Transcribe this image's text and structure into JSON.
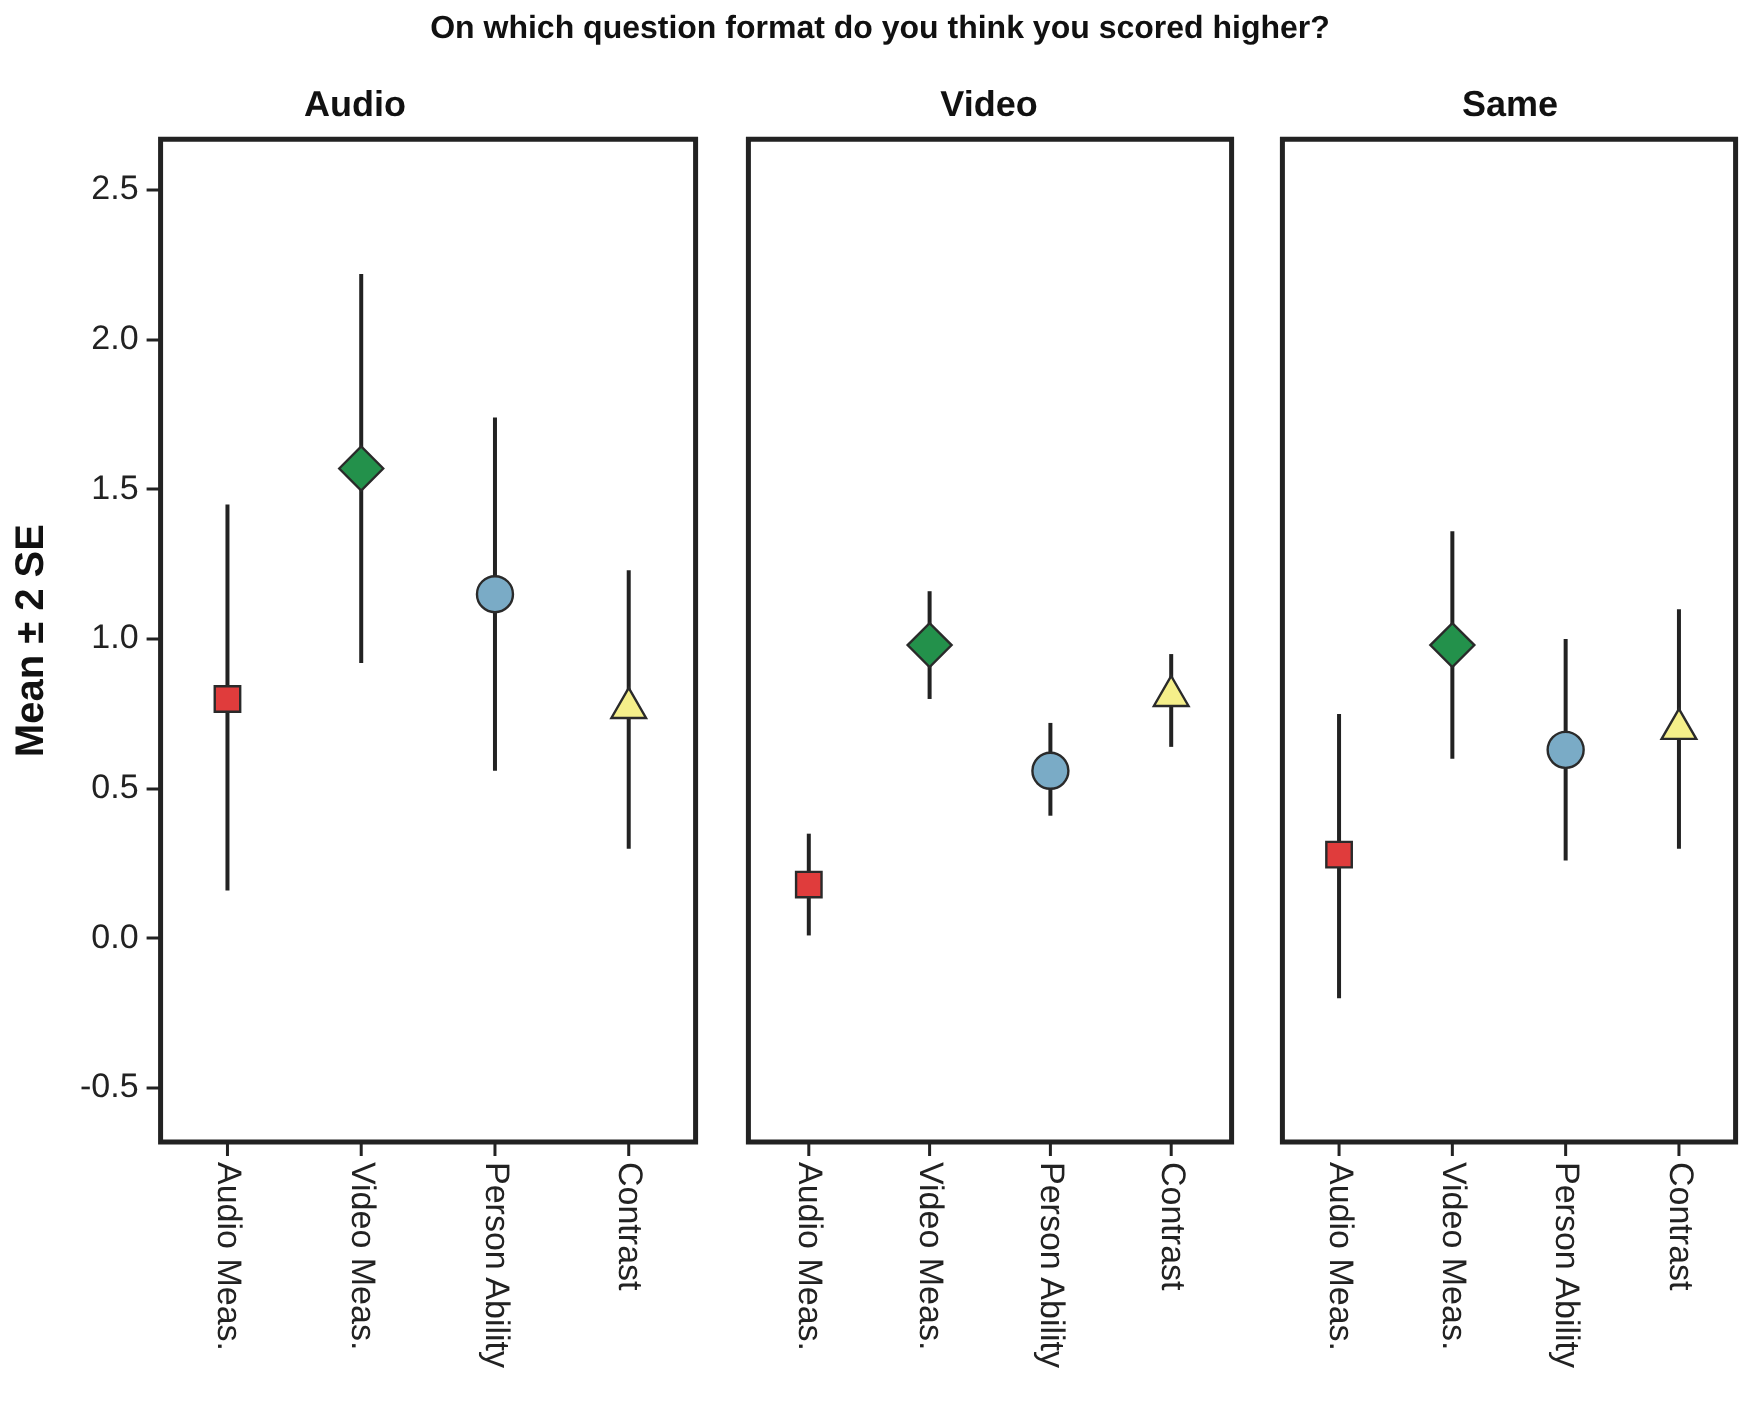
{
  "chart_data": [
    {
      "type": "scatter",
      "title": "On which question format do you think you scored higher?",
      "subtitle": "Audio",
      "ylabel": "Mean ± 2 SE",
      "categories": [
        "Audio Meas.",
        "Video Meas.",
        "Person Ability",
        "Contrast"
      ],
      "ylim": [
        -0.68,
        2.67
      ],
      "yticks": [
        {
          "value": -0.5,
          "label": "-0.5"
        },
        {
          "value": 0,
          "label": "0.0"
        },
        {
          "value": 0.5,
          "label": "0.5"
        },
        {
          "value": 1,
          "label": "1.0"
        },
        {
          "value": 1.5,
          "label": "1.5"
        },
        {
          "value": 2,
          "label": "2.0"
        },
        {
          "value": 2.5,
          "label": "2.5"
        }
      ],
      "grid": false,
      "series": [
        {
          "color": "#e03c3c",
          "marker": "square",
          "x": [
            "Audio Meas."
          ],
          "values": [
            0.8
          ],
          "errors": [
            [
              0.16,
              1.45
            ]
          ]
        },
        {
          "color": "#23914b",
          "marker": "diamond",
          "x": [
            "Video Meas."
          ],
          "values": [
            1.57
          ],
          "errors": [
            [
              0.92,
              2.22
            ]
          ]
        },
        {
          "color": "#7aabc6",
          "marker": "circle",
          "x": [
            "Person Ability"
          ],
          "values": [
            1.15
          ],
          "errors": [
            [
              0.56,
              1.74
            ]
          ]
        },
        {
          "color": "#f5ef8a",
          "marker": "triangle",
          "x": [
            "Contrast"
          ],
          "values": [
            0.77
          ],
          "errors": [
            [
              0.3,
              1.23
            ]
          ]
        }
      ]
    },
    {
      "type": "scatter",
      "subtitle": "Video",
      "categories": [
        "Audio Meas.",
        "Video Meas.",
        "Person Ability",
        "Contrast"
      ],
      "ylim": [
        -0.68,
        2.67
      ],
      "tick_labels": "x",
      "grid": false,
      "series": [
        {
          "color": "#e03c3c",
          "marker": "square",
          "x": [
            "Audio Meas."
          ],
          "values": [
            0.18
          ],
          "errors": [
            [
              0.01,
              0.35
            ]
          ]
        },
        {
          "color": "#23914b",
          "marker": "diamond",
          "x": [
            "Video Meas."
          ],
          "values": [
            0.98
          ],
          "errors": [
            [
              0.8,
              1.16
            ]
          ]
        },
        {
          "color": "#7aabc6",
          "marker": "circle",
          "x": [
            "Person Ability"
          ],
          "values": [
            0.56
          ],
          "errors": [
            [
              0.41,
              0.72
            ]
          ]
        },
        {
          "color": "#f5ef8a",
          "marker": "triangle",
          "x": [
            "Contrast"
          ],
          "values": [
            0.81
          ],
          "errors": [
            [
              0.64,
              0.95
            ]
          ]
        }
      ]
    },
    {
      "type": "scatter",
      "subtitle": "Same",
      "categories": [
        "Audio Meas.",
        "Video Meas.",
        "Person Ability",
        "Contrast"
      ],
      "ylim": [
        -0.68,
        2.67
      ],
      "tick_labels": "x",
      "grid": false,
      "series": [
        {
          "color": "#e03c3c",
          "marker": "square",
          "x": [
            "Audio Meas."
          ],
          "values": [
            0.28
          ],
          "errors": [
            [
              -0.2,
              0.75
            ]
          ]
        },
        {
          "color": "#23914b",
          "marker": "diamond",
          "x": [
            "Video Meas."
          ],
          "values": [
            0.98
          ],
          "errors": [
            [
              0.6,
              1.36
            ]
          ]
        },
        {
          "color": "#7aabc6",
          "marker": "circle",
          "x": [
            "Person Ability"
          ],
          "values": [
            0.63
          ],
          "errors": [
            [
              0.26,
              1.0
            ]
          ]
        },
        {
          "color": "#f5ef8a",
          "marker": "triangle",
          "x": [
            "Contrast"
          ],
          "values": [
            0.7
          ],
          "errors": [
            [
              0.3,
              1.1
            ]
          ]
        }
      ]
    }
  ]
}
